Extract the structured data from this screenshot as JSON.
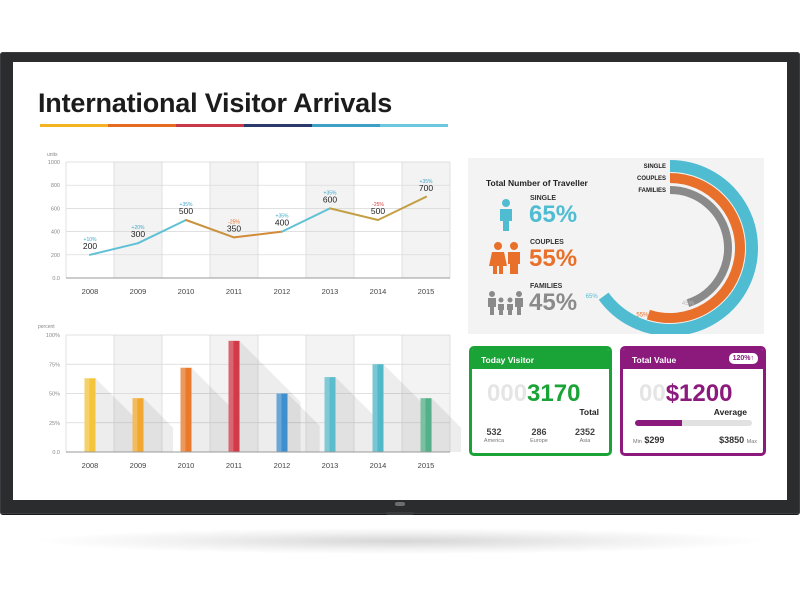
{
  "page": {
    "title": "International Visitor Arrivals"
  },
  "title_bar_colors": [
    "#f4b323",
    "#e56b23",
    "#c9384a",
    "#2a3a6a",
    "#3ea0c4",
    "#6cc6dc"
  ],
  "chart_data": [
    {
      "type": "line",
      "ylabel": "units",
      "ylim": [
        0,
        1000
      ],
      "yticks": [
        "0.0",
        "200",
        "400",
        "600",
        "800",
        "1000"
      ],
      "x": [
        "2008",
        "2009",
        "2010",
        "2011",
        "2012",
        "2013",
        "2014",
        "2015"
      ],
      "values": [
        200,
        300,
        500,
        350,
        400,
        600,
        500,
        700
      ],
      "value_labels": [
        "200",
        "300",
        "500",
        "350",
        "400",
        "600",
        "500",
        "700"
      ],
      "annotations": [
        "+10%",
        "+20%",
        "+35%",
        "-25%",
        "+35%",
        "+35%",
        "-25%",
        "+35%"
      ],
      "annotation_colors": [
        "#3ea6c9",
        "#3ea6c9",
        "#3ea6c9",
        "#e56b23",
        "#3ea6c9",
        "#3ea6c9",
        "#d23c3c",
        "#3ea6c9"
      ],
      "segment_colors": [
        "#5fc0d6",
        "#5fc0d6",
        "#c9923c",
        "#d38a3a",
        "#5fc0d6",
        "#c3a045",
        "#c3a045"
      ]
    },
    {
      "type": "bar",
      "ylabel": "percent",
      "ylim": [
        0,
        100
      ],
      "yticks": [
        "0.0",
        "25%",
        "50%",
        "75%",
        "100%"
      ],
      "categories": [
        "2008",
        "2009",
        "2010",
        "2011",
        "2012",
        "2013",
        "2014",
        "2015"
      ],
      "values": [
        63,
        46,
        72,
        95,
        50,
        64,
        75,
        46
      ],
      "colors": [
        "#f2c53d",
        "#f0a830",
        "#e97a2c",
        "#d13a48",
        "#3f8fce",
        "#5cbccc",
        "#52b8c8",
        "#55b08a"
      ]
    },
    {
      "type": "pie",
      "title": "Total Number of Traveller",
      "categories": [
        "SINGLE",
        "COUPLES",
        "FAMILIES"
      ],
      "values": [
        65,
        55,
        45
      ],
      "value_labels": [
        "65%",
        "55%",
        "45%"
      ],
      "colors": [
        "#4fbcd2",
        "#e8702a",
        "#8a8a8a"
      ]
    }
  ],
  "today_visitor": {
    "header": "Today Visitor",
    "number_dim": "000",
    "number": "3170",
    "number_label": "Total",
    "stats": [
      {
        "value": "532",
        "label": "America"
      },
      {
        "value": "286",
        "label": "Europe"
      },
      {
        "value": "2352",
        "label": "Asia"
      }
    ]
  },
  "total_value": {
    "header": "Total Value",
    "badge": "120%↑",
    "number_dim": "00",
    "number": "$1200",
    "number_label": "Average",
    "range_fraction": 0.4,
    "min_label": "Min",
    "min_value": "$299",
    "max_value": "$3850",
    "max_label": "Max"
  }
}
